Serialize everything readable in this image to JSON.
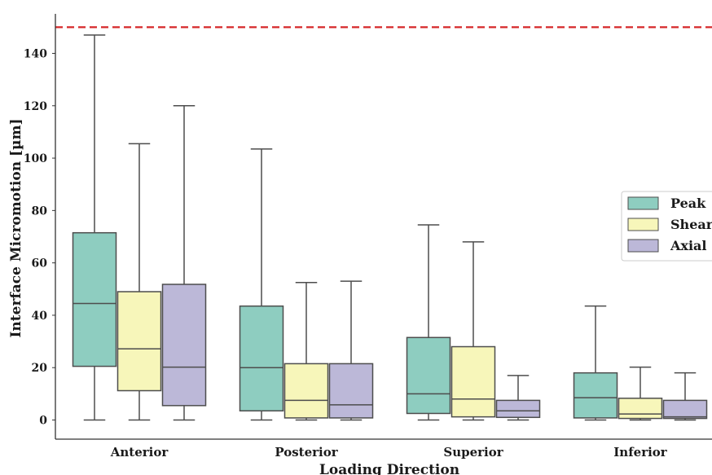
{
  "chart_data": {
    "type": "box",
    "xlabel": "Loading Direction",
    "ylabel": "Interface Micromotion [µm]",
    "categories": [
      "Anterior",
      "Posterior",
      "Superior",
      "Inferior"
    ],
    "ylim": [
      -7,
      155
    ],
    "yticks": [
      0,
      20,
      40,
      60,
      80,
      100,
      120,
      140
    ],
    "threshold": {
      "value": 150,
      "color": "#d62728",
      "style": "dashed"
    },
    "grid": false,
    "legend": {
      "placement": "right",
      "entries": [
        "Peak",
        "Shear",
        "Axial"
      ]
    },
    "series": [
      {
        "name": "Peak",
        "color": "#8ecdc0",
        "boxes": [
          {
            "min": 0,
            "q1": 20.5,
            "median": 44.5,
            "q3": 71.5,
            "max": 147
          },
          {
            "min": 0,
            "q1": 3.5,
            "median": 20,
            "q3": 43.5,
            "max": 103.5
          },
          {
            "min": 0,
            "q1": 2.5,
            "median": 10,
            "q3": 31.5,
            "max": 74.5
          },
          {
            "min": 0,
            "q1": 0.8,
            "median": 8.5,
            "q3": 18,
            "max": 43.5
          }
        ]
      },
      {
        "name": "Shear",
        "color": "#f7f6ba",
        "boxes": [
          {
            "min": 0,
            "q1": 11.2,
            "median": 27.2,
            "q3": 49,
            "max": 105.5
          },
          {
            "min": 0,
            "q1": 0.8,
            "median": 7.5,
            "q3": 21.5,
            "max": 52.5
          },
          {
            "min": 0,
            "q1": 1.2,
            "median": 8,
            "q3": 28,
            "max": 68
          },
          {
            "min": 0,
            "q1": 0.6,
            "median": 2.3,
            "q3": 8.3,
            "max": 20.2
          }
        ]
      },
      {
        "name": "Axial",
        "color": "#bcb8d8",
        "boxes": [
          {
            "min": 0,
            "q1": 5.5,
            "median": 20.2,
            "q3": 51.8,
            "max": 120
          },
          {
            "min": 0,
            "q1": 0.8,
            "median": 5.8,
            "q3": 21.5,
            "max": 53
          },
          {
            "min": 0,
            "q1": 1,
            "median": 3.5,
            "q3": 7.5,
            "max": 17
          },
          {
            "min": 0,
            "q1": 0.6,
            "median": 1.2,
            "q3": 7.5,
            "max": 18
          }
        ]
      }
    ]
  }
}
